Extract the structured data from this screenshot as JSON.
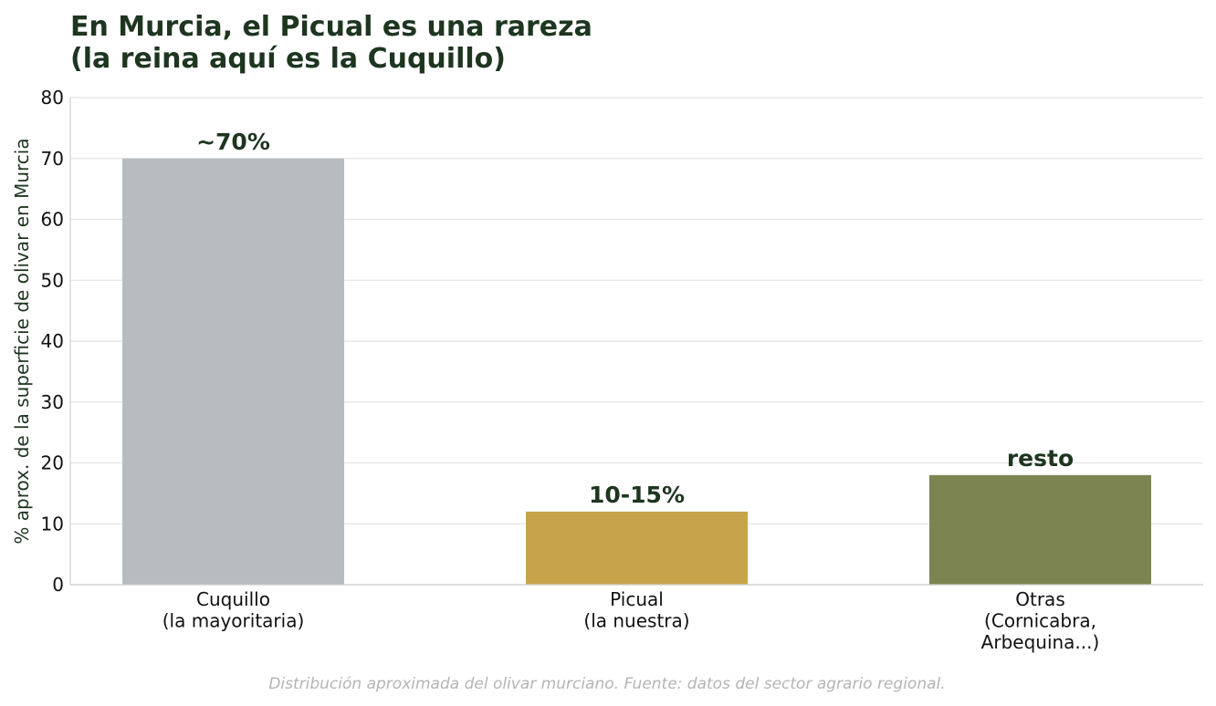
{
  "chart_data": {
    "type": "bar",
    "title_lines": [
      "En Murcia, el Picual es una rareza",
      "(la reina aquí es la Cuquillo)"
    ],
    "ylabel": "% aprox. de la superficie de olivar en Murcia",
    "xlabel": "",
    "ylim": [
      0,
      80
    ],
    "yticks": [
      0,
      10,
      20,
      30,
      40,
      50,
      60,
      70,
      80
    ],
    "grid": true,
    "categories": [
      {
        "lines": [
          "Cuquillo",
          "(la mayoritaria)"
        ]
      },
      {
        "lines": [
          "Picual",
          "(la nuestra)"
        ]
      },
      {
        "lines": [
          "Otras",
          "(Cornicabra,",
          "Arbequina...)"
        ]
      }
    ],
    "values": [
      70,
      12,
      18
    ],
    "data_labels": [
      "~70%",
      "10-15%",
      "resto"
    ],
    "colors": [
      "#b8bbbf",
      "#c7a44b",
      "#7c8551"
    ],
    "caption": "Distribución aproximada del olivar murciano. Fuente: datos del sector agrario regional."
  }
}
